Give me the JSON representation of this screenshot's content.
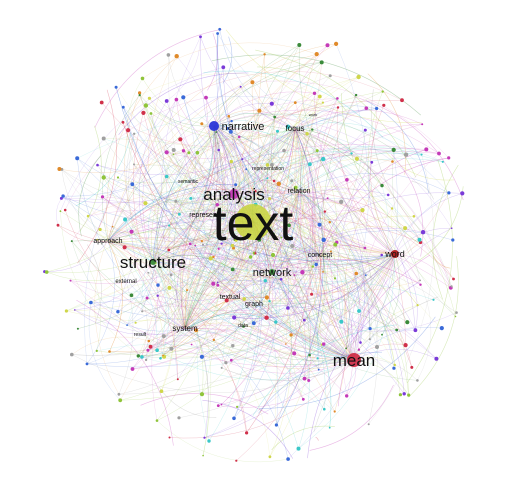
{
  "graph": {
    "colors": {
      "text": "#c8d43a",
      "narrative": "#2a35d8",
      "analysis": "#c43ab8",
      "mean": "#d0304a",
      "word": "#b01a1a",
      "edge_palette": [
        "#3b8a3a",
        "#8fc43a",
        "#c43ab8",
        "#d0304a",
        "#3a6ad8",
        "#7a3ad8",
        "#3ac8c8",
        "#e08a2a",
        "#a0a0a0",
        "#cfd64a"
      ]
    },
    "nodes": [
      {
        "id": "text",
        "label": "text",
        "color": "#c8d43a",
        "label_size": 50
      },
      {
        "id": "analysis",
        "label": "analysis",
        "color": "#c43ab8",
        "label_size": 17
      },
      {
        "id": "structure",
        "label": "structure",
        "color": "#3b8a3a",
        "label_size": 17
      },
      {
        "id": "mean",
        "label": "mean",
        "color": "#d0304a",
        "label_size": 17
      },
      {
        "id": "narrative",
        "label": "narrative",
        "color": "#2a35d8",
        "label_size": 11
      },
      {
        "id": "network",
        "label": "network",
        "color": "#3b8a3a",
        "label_size": 11
      },
      {
        "id": "word",
        "label": "word",
        "color": "#b01a1a",
        "label_size": 9
      },
      {
        "id": "focus",
        "label": "focus",
        "color": "#8fc43a",
        "label_size": 8
      },
      {
        "id": "relation",
        "label": "relation",
        "color": "#c43ab8",
        "label_size": 7
      },
      {
        "id": "represent",
        "label": "represent",
        "color": "#7a3ad8",
        "label_size": 7
      },
      {
        "id": "concept",
        "label": "concept",
        "color": "#d0304a",
        "label_size": 7
      },
      {
        "id": "approach",
        "label": "approach",
        "color": "#3a6ad8",
        "label_size": 7
      },
      {
        "id": "textual",
        "label": "textual",
        "color": "#3b8a3a",
        "label_size": 7
      },
      {
        "id": "graph",
        "label": "graph",
        "color": "#3b8a3a",
        "label_size": 7
      },
      {
        "id": "system",
        "label": "system",
        "color": "#8fc43a",
        "label_size": 8
      },
      {
        "id": "external",
        "label": "external",
        "color": "#8fc43a",
        "label_size": 6
      },
      {
        "id": "semantic",
        "label": "semantic",
        "color": "#c43ab8",
        "label_size": 5
      },
      {
        "id": "representation",
        "label": "representation",
        "color": "#7a3ad8",
        "label_size": 5
      },
      {
        "id": "data",
        "label": "data",
        "color": "#3b8a3a",
        "label_size": 5
      },
      {
        "id": "result",
        "label": "result",
        "color": "#8fc43a",
        "label_size": 5
      },
      {
        "id": "work",
        "label": "work",
        "color": "#8fc43a",
        "label_size": 4
      }
    ]
  }
}
